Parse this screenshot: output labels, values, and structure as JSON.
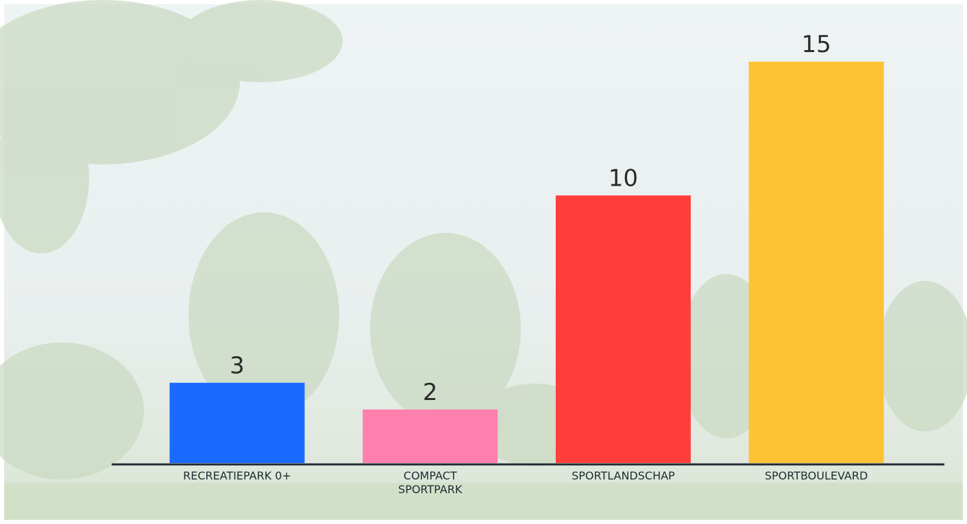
{
  "chart_data": {
    "type": "bar",
    "categories": [
      "RECREATIEPARK 0+",
      "COMPACT\nSPORTPARK",
      "SPORTLANDSCHAP",
      "SPORTBOULEVARD"
    ],
    "values": [
      3,
      2,
      10,
      15
    ],
    "colors": [
      "#1b6aff",
      "#ff80ac",
      "#ff3e3c",
      "#ffc234"
    ],
    "ylim": [
      0,
      15
    ]
  }
}
